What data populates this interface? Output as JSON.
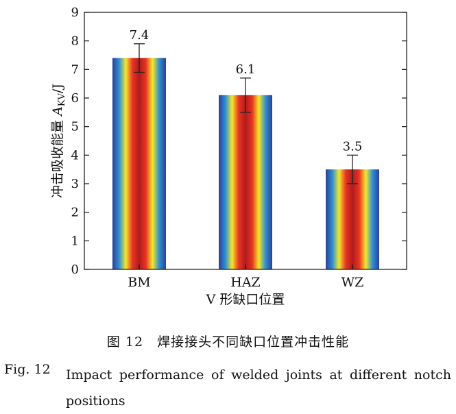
{
  "chart_data": {
    "type": "bar",
    "categories": [
      "BM",
      "HAZ",
      "WZ"
    ],
    "values": [
      7.4,
      6.1,
      3.5
    ],
    "errors": [
      0.5,
      0.6,
      0.5
    ],
    "data_labels": [
      "7.4",
      "6.1",
      "3.5"
    ],
    "ylim": [
      0,
      9
    ],
    "yticks": [
      "0",
      "1",
      "2",
      "3",
      "4",
      "5",
      "6",
      "7",
      "8",
      "9"
    ],
    "xlabel": "V 形缺口位置",
    "ylabel_prefix": "冲击吸收能量 ",
    "ylabel_symbol": "A",
    "ylabel_subscript": "KV",
    "ylabel_unit": "/J",
    "grid": false,
    "bar_gradient": [
      "#2b3f98",
      "#2f8fd2",
      "#f3e82a",
      "#e83324",
      "#b01c1c",
      "#e83324",
      "#f3e82a",
      "#2f8fd2",
      "#2b3f98"
    ]
  },
  "caption": {
    "cn": "图 12　焊接接头不同缺口位置冲击性能",
    "en_prefix": "Fig. 12",
    "en_body": "Impact performance of welded joints at different notch positions"
  }
}
